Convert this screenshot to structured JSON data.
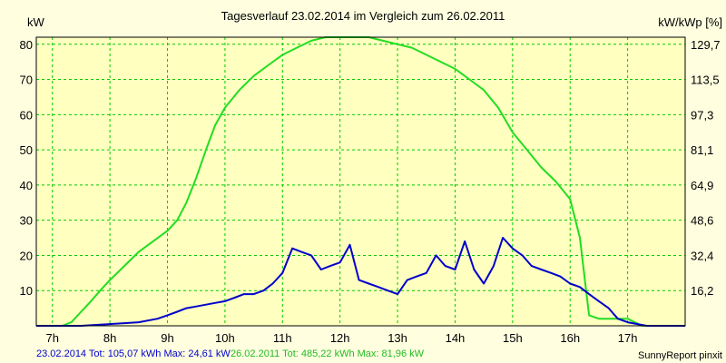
{
  "chart_data": {
    "type": "line",
    "title": "Tagesverlauf 23.02.2014 im Vergleich zum 26.02.2011",
    "y_left_label": "kW",
    "y_right_label": "kW/kWp [%]",
    "x_ticks": [
      "7h",
      "8h",
      "9h",
      "10h",
      "11h",
      "12h",
      "13h",
      "14h",
      "15h",
      "16h",
      "17h"
    ],
    "x_tick_values": [
      7,
      8,
      9,
      10,
      11,
      12,
      13,
      14,
      15,
      16,
      17
    ],
    "xlim": [
      6.72,
      18.0
    ],
    "y_left_ticks": [
      "10",
      "20",
      "30",
      "40",
      "50",
      "60",
      "70",
      "80"
    ],
    "y_left_tick_values": [
      10,
      20,
      30,
      40,
      50,
      60,
      70,
      80
    ],
    "y_right_ticks": [
      "16,2",
      "32,4",
      "48,6",
      "64,9",
      "81,1",
      "97,3",
      "113,5",
      "129,7"
    ],
    "ylim": [
      0,
      82
    ],
    "grid": true,
    "colors": {
      "background": "#ffffe0",
      "plot_background": "#ffffc0",
      "grid": "#00cc00",
      "axis": "#000000"
    },
    "series": [
      {
        "name": "26.02.2011",
        "color": "#22dd22",
        "x": [
          6.72,
          7.17,
          7.33,
          7.5,
          7.67,
          7.83,
          8.0,
          8.25,
          8.5,
          8.75,
          9.0,
          9.17,
          9.33,
          9.5,
          9.67,
          9.83,
          10.0,
          10.25,
          10.5,
          10.75,
          11.0,
          11.25,
          11.5,
          11.75,
          12.0,
          12.25,
          12.5,
          12.75,
          13.0,
          13.25,
          13.5,
          13.75,
          14.0,
          14.25,
          14.5,
          14.75,
          15.0,
          15.25,
          15.5,
          15.75,
          16.0,
          16.17,
          16.33,
          16.5,
          16.75,
          17.0,
          17.25,
          17.5,
          17.75,
          18.0
        ],
        "values": [
          0,
          0,
          1,
          4,
          7,
          10,
          13,
          17,
          21,
          24,
          27,
          30,
          35,
          42,
          50,
          57,
          62,
          67,
          71,
          74,
          77,
          79,
          81,
          82,
          82,
          82,
          82,
          81,
          80,
          79,
          77,
          75,
          73,
          70,
          67,
          62,
          55,
          50,
          45,
          41,
          36,
          25,
          3,
          2,
          2,
          2,
          0,
          0,
          0,
          0
        ]
      },
      {
        "name": "23.02.2014",
        "color": "#0000cc",
        "x": [
          6.72,
          7.5,
          7.83,
          8.0,
          8.5,
          8.83,
          9.0,
          9.17,
          9.33,
          9.5,
          9.67,
          9.83,
          10.0,
          10.17,
          10.33,
          10.5,
          10.67,
          10.83,
          11.0,
          11.17,
          11.33,
          11.5,
          11.67,
          11.83,
          12.0,
          12.17,
          12.33,
          12.5,
          12.67,
          12.83,
          13.0,
          13.17,
          13.33,
          13.5,
          13.67,
          13.83,
          14.0,
          14.17,
          14.33,
          14.5,
          14.67,
          14.83,
          15.0,
          15.17,
          15.33,
          15.5,
          15.67,
          15.83,
          16.0,
          16.17,
          16.33,
          16.5,
          16.67,
          16.83,
          17.0,
          17.33,
          17.67,
          18.0
        ],
        "values": [
          0,
          0,
          0.3,
          0.5,
          1,
          2,
          3,
          4,
          5,
          5.5,
          6,
          6.5,
          7,
          8,
          9,
          9,
          10,
          12,
          15,
          22,
          21,
          20,
          16,
          17,
          18,
          23,
          13,
          12,
          11,
          10,
          9,
          13,
          14,
          15,
          20,
          17,
          16,
          24,
          16,
          12,
          17,
          25,
          22,
          20,
          17,
          16,
          15,
          14,
          12,
          11,
          9,
          7,
          5,
          2,
          1,
          0,
          0,
          0
        ]
      }
    ]
  },
  "footer": {
    "series1_text": "23.02.2014 Tot: 105,07 kWh Max: 24,61 kW",
    "series2_text": "26.02.2011 Tot: 485,22 kWh Max: 81,96 kW",
    "credit": "SunnyReport pinxit"
  }
}
